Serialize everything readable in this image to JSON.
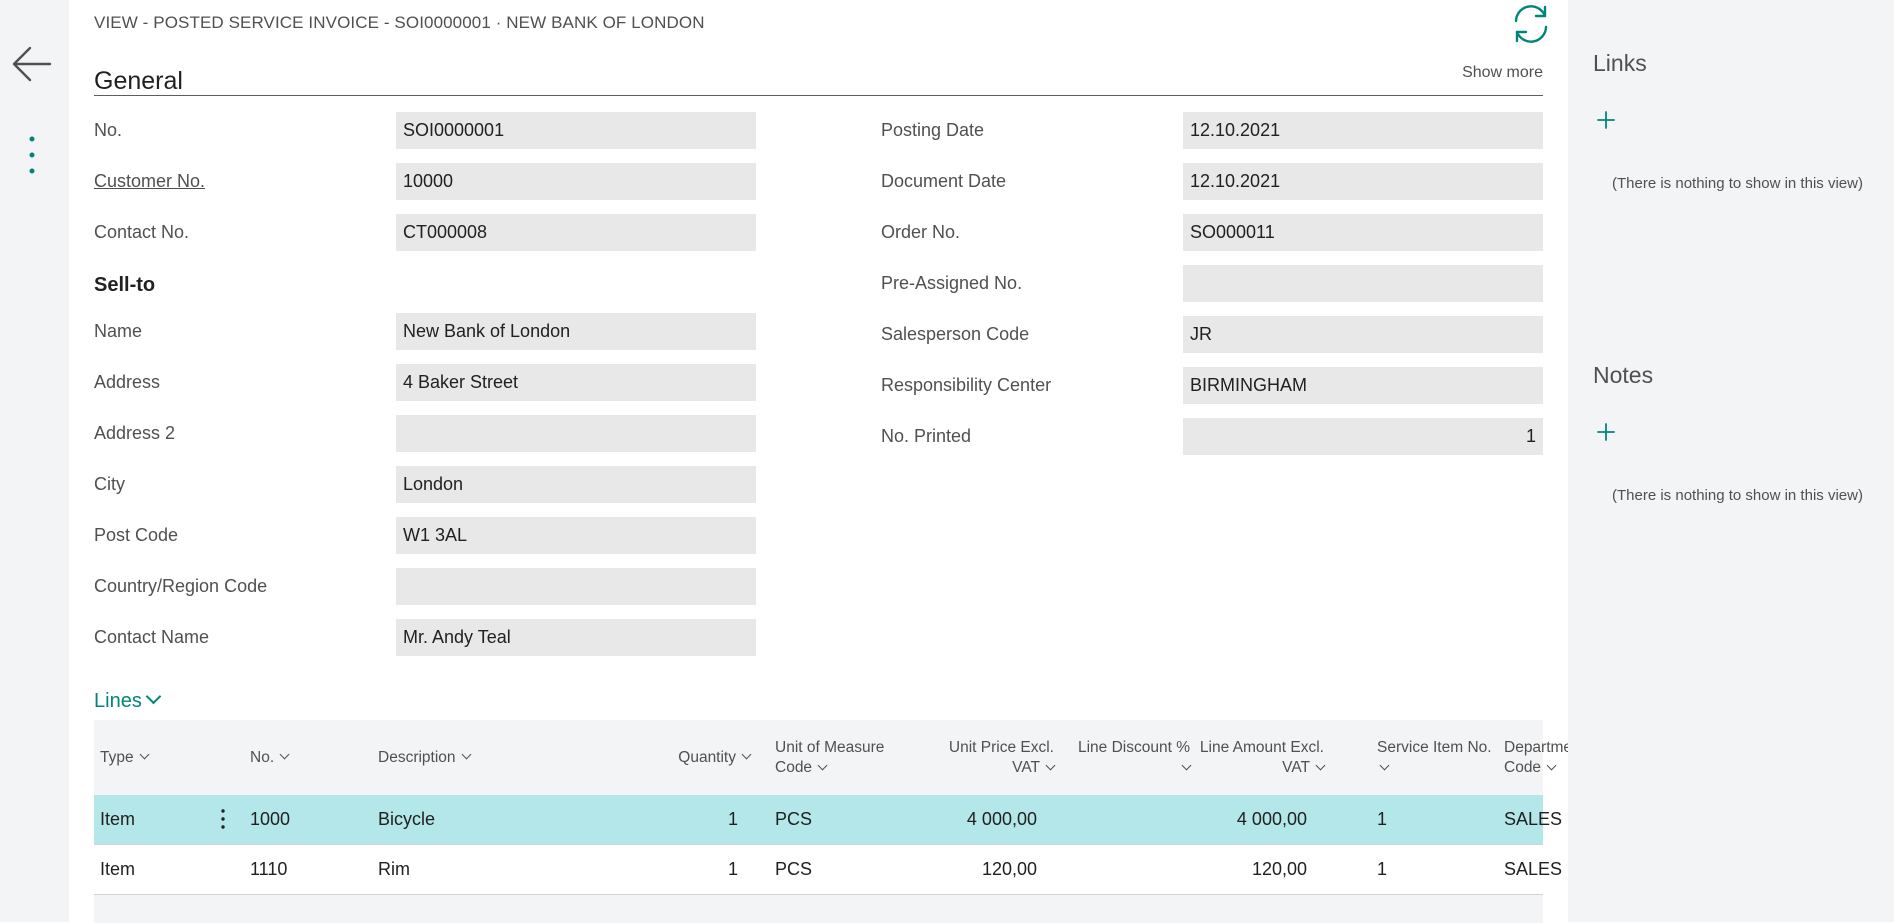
{
  "colors": {
    "accent": "#00857a",
    "field_bg": "#e8e8e9",
    "rail_bg": "#f3f4f5",
    "selected_row": "#b3e7e9"
  },
  "nav": {
    "back_icon": "arrow-left-icon",
    "more_icon": "vertical-ellipsis-icon",
    "refresh_icon": "refresh-icon"
  },
  "header": {
    "caption": "VIEW - POSTED SERVICE INVOICE - SOI0000001 · NEW BANK OF LONDON"
  },
  "general": {
    "title": "General",
    "show_more": "Show more",
    "left": [
      {
        "label": "No.",
        "value": "SOI0000001"
      },
      {
        "label": "Customer No.",
        "value": "10000"
      },
      {
        "label": "Contact No.",
        "value": "CT000008"
      }
    ],
    "sell_to": {
      "heading": "Sell-to",
      "fields": [
        {
          "label": "Name",
          "value": "New Bank of London"
        },
        {
          "label": "Address",
          "value": "4 Baker Street"
        },
        {
          "label": "Address 2",
          "value": ""
        },
        {
          "label": "City",
          "value": "London"
        },
        {
          "label": "Post Code",
          "value": "W1 3AL"
        },
        {
          "label": "Country/Region Code",
          "value": ""
        },
        {
          "label": "Contact Name",
          "value": "Mr. Andy Teal"
        }
      ]
    },
    "right": [
      {
        "label": "Posting Date",
        "value": "12.10.2021"
      },
      {
        "label": "Document Date",
        "value": "12.10.2021"
      },
      {
        "label": "Order No.",
        "value": "SO000011"
      },
      {
        "label": "Pre-Assigned No.",
        "value": ""
      },
      {
        "label": "Salesperson Code",
        "value": "JR"
      },
      {
        "label": "Responsibility Center",
        "value": "BIRMINGHAM"
      },
      {
        "label": "No. Printed",
        "value": "1"
      }
    ]
  },
  "lines": {
    "title": "Lines",
    "columns": [
      {
        "l1": "Type"
      },
      {
        "l1": "No."
      },
      {
        "l1": "Description"
      },
      {
        "l1": "Quantity"
      },
      {
        "l1": "Unit of Measure",
        "l2": "Code"
      },
      {
        "l1": "Unit Price Excl.",
        "l2": "VAT"
      },
      {
        "l1": "Line Discount %"
      },
      {
        "l1": "Line Amount Excl.",
        "l2": "VAT"
      },
      {
        "l1": "Service Item No."
      },
      {
        "l1": "Department",
        "l2": "Code"
      }
    ],
    "rows": [
      {
        "type": "Item",
        "no": "1000",
        "description": "Bicycle",
        "quantity": "1",
        "uom": "PCS",
        "unit_price": "4 000,00",
        "line_discount": "",
        "line_amount": "4 000,00",
        "service_item": "1",
        "department": "SALES"
      },
      {
        "type": "Item",
        "no": "1110",
        "description": "Rim",
        "quantity": "1",
        "uom": "PCS",
        "unit_price": "120,00",
        "line_discount": "",
        "line_amount": "120,00",
        "service_item": "1",
        "department": "SALES"
      }
    ]
  },
  "factbox": {
    "links": {
      "title": "Links",
      "empty": "(There is nothing to show in this view)"
    },
    "notes": {
      "title": "Notes",
      "empty": "(There is nothing to show in this view)"
    }
  }
}
